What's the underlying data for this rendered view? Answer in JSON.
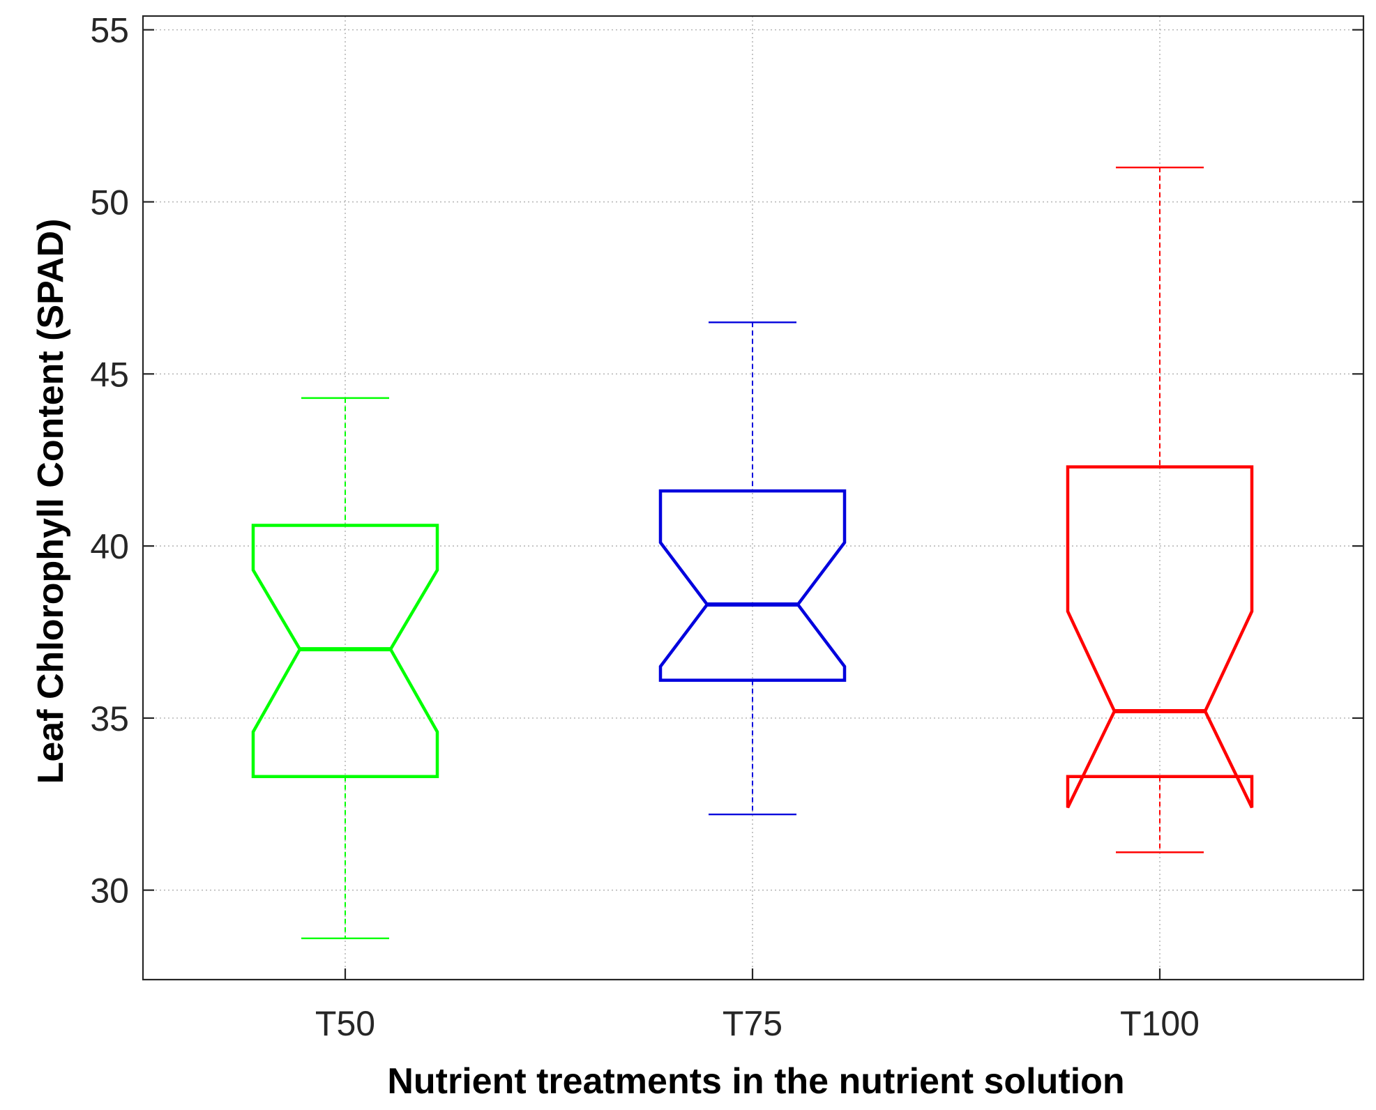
{
  "chart_data": {
    "type": "boxplot",
    "notched": true,
    "title": "",
    "xlabel": "Nutrient treatments in the nutrient solution",
    "ylabel": "Leaf Chlorophyll Content (SPAD)",
    "ylim": [
      27.4,
      55.4
    ],
    "yticks": [
      30,
      35,
      40,
      45,
      50,
      55
    ],
    "grid": true,
    "categories": [
      "T50",
      "T75",
      "T100"
    ],
    "boxes": [
      {
        "category": "T50",
        "color": "#00ff00",
        "whisker_low": 28.6,
        "q1": 33.3,
        "median": 37.0,
        "q3": 40.6,
        "whisker_high": 44.3,
        "notch_low": 34.6,
        "notch_high": 39.3
      },
      {
        "category": "T75",
        "color": "#0000dd",
        "whisker_low": 32.2,
        "q1": 36.1,
        "median": 38.3,
        "q3": 41.6,
        "whisker_high": 46.5,
        "notch_low": 36.5,
        "notch_high": 40.1
      },
      {
        "category": "T100",
        "color": "#ff0000",
        "whisker_low": 31.1,
        "q1": 33.3,
        "median": 35.2,
        "q3": 42.3,
        "whisker_high": 51.0,
        "notch_low": 32.4,
        "notch_high": 38.1
      }
    ]
  }
}
